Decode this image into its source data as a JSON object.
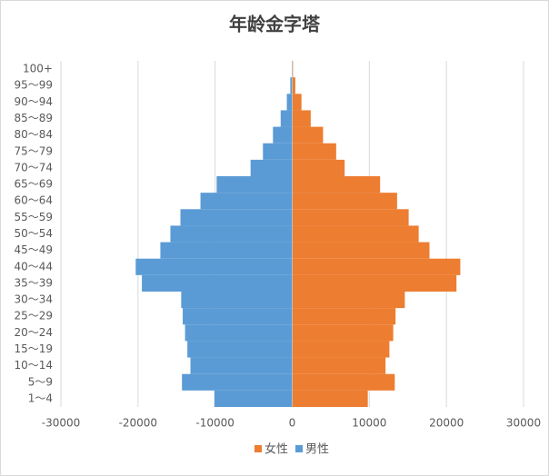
{
  "chart_data": {
    "type": "bar",
    "orientation": "horizontal",
    "title": "年龄金字塔",
    "categories": [
      "1～4",
      "5～9",
      "10～14",
      "15～19",
      "20～24",
      "25～29",
      "30～34",
      "35～39",
      "40～44",
      "45～49",
      "50～54",
      "55～59",
      "60～64",
      "65～69",
      "70～74",
      "75～79",
      "80～84",
      "85～89",
      "90～94",
      "95～99",
      "100+"
    ],
    "series": [
      {
        "name": "女性",
        "color": "#ed7d31",
        "values": [
          9800,
          13300,
          12100,
          12600,
          13100,
          13400,
          14600,
          21300,
          21800,
          17800,
          16400,
          15100,
          13600,
          11400,
          6800,
          5700,
          4000,
          2400,
          1200,
          400,
          100
        ]
      },
      {
        "name": "男性",
        "color": "#5b9bd5",
        "values": [
          -10100,
          -14300,
          -13200,
          -13600,
          -13900,
          -14200,
          -14400,
          -19500,
          -20300,
          -17100,
          -15800,
          -14500,
          -11900,
          -9800,
          -5400,
          -3800,
          -2500,
          -1500,
          -700,
          -250,
          -50
        ]
      }
    ],
    "xlim": [
      -30000,
      30000
    ],
    "xticks": [
      -30000,
      -20000,
      -10000,
      0,
      10000,
      20000,
      30000
    ],
    "grid": true,
    "legend": "bottom"
  }
}
